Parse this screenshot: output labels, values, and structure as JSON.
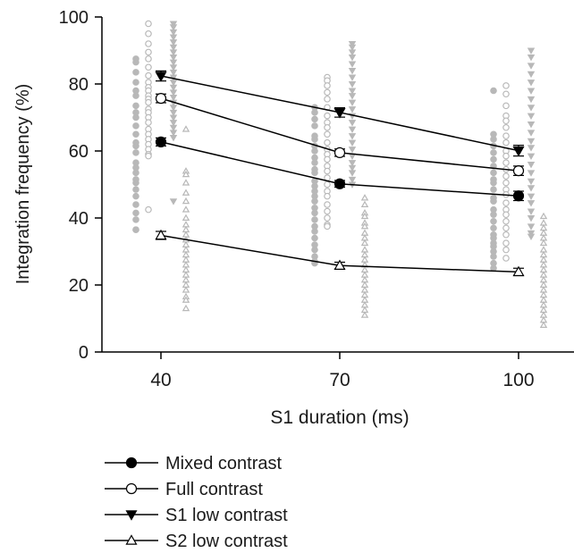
{
  "chart_data": {
    "type": "scatter",
    "xlabel": "S1 duration (ms)",
    "ylabel": "Integration frequency (%)",
    "x_categories": [
      "40",
      "70",
      "100"
    ],
    "x": [
      40,
      70,
      100
    ],
    "ylim": [
      0,
      100
    ],
    "yticks": [
      0,
      20,
      40,
      60,
      80,
      100
    ],
    "grid": false,
    "legend_position": "bottom-left",
    "series": [
      {
        "name": "Mixed contrast",
        "marker": "filled-circle",
        "color": "#000000",
        "mean": [
          62.7,
          50.2,
          46.6
        ],
        "sem": [
          1.2,
          1.0,
          1.4
        ],
        "individual": [
          [
            87.5,
            86.5,
            83.5,
            80.5,
            78.0,
            76.5,
            73.5,
            71.5,
            70.0,
            67.5,
            65.0,
            62.5,
            61.5,
            59.5,
            56.5,
            55.0,
            53.5,
            51.5,
            50.5,
            48.5,
            46.5,
            44.0,
            41.5,
            39.5,
            36.5,
            36.5
          ],
          [
            73.0,
            71.5,
            69.5,
            67.5,
            64.5,
            63.5,
            61.5,
            60.0,
            58.0,
            56.5,
            54.5,
            53.5,
            51.0,
            49.5,
            48.0,
            46.5,
            45.0,
            43.0,
            41.5,
            39.5,
            37.5,
            36.0,
            34.0,
            32.0,
            30.5,
            28.5,
            27.0,
            26.5
          ],
          [
            78.0,
            65.0,
            63.5,
            61.5,
            59.5,
            57.5,
            55.5,
            53.5,
            51.5,
            50.5,
            48.5,
            46.0,
            45.0,
            42.5,
            41.0,
            39.0,
            37.0,
            35.0,
            34.0,
            32.5,
            31.5,
            30.0,
            28.5,
            26.5,
            25.0
          ]
        ]
      },
      {
        "name": "Full contrast",
        "marker": "open-circle",
        "color": "#000000",
        "mean": [
          75.7,
          59.5,
          54.1
        ],
        "sem": [
          1.3,
          1.1,
          1.4
        ],
        "individual": [
          [
            98.0,
            95.0,
            92.0,
            89.5,
            87.5,
            85.0,
            82.5,
            80.5,
            79.0,
            78.0,
            76.5,
            75.5,
            74.5,
            72.5,
            71.5,
            70.0,
            68.5,
            66.5,
            65.0,
            63.5,
            62.0,
            60.5,
            59.0,
            58.5,
            42.5
          ],
          [
            82.0,
            81.0,
            79.5,
            77.5,
            75.5,
            73.0,
            70.5,
            68.5,
            67.0,
            65.0,
            62.5,
            60.5,
            59.0,
            57.5,
            55.5,
            54.0,
            52.0,
            50.0,
            48.0,
            46.5,
            44.0,
            42.0,
            40.0,
            38.0,
            37.5
          ],
          [
            79.5,
            77.0,
            73.5,
            70.5,
            69.0,
            67.0,
            64.5,
            62.5,
            60.0,
            58.5,
            56.5,
            54.5,
            52.5,
            50.5,
            48.5,
            47.0,
            44.5,
            42.5,
            41.0,
            39.0,
            37.0,
            35.0,
            32.5,
            30.5,
            28.0
          ]
        ]
      },
      {
        "name": "S1 low contrast",
        "marker": "filled-triangle-down",
        "color": "#000000",
        "mean": [
          82.4,
          71.5,
          60.1
        ],
        "sem": [
          1.5,
          1.4,
          1.6
        ],
        "individual": [
          [
            98.0,
            97.0,
            95.5,
            94.0,
            92.5,
            91.0,
            89.5,
            88.0,
            86.5,
            85.0,
            83.5,
            82.0,
            80.5,
            79.0,
            77.5,
            76.0,
            74.5,
            73.0,
            71.5,
            70.0,
            68.5,
            67.0,
            65.5,
            64.0,
            45.0
          ],
          [
            92.0,
            91.0,
            89.5,
            88.0,
            86.0,
            84.0,
            82.0,
            80.0,
            78.0,
            76.5,
            74.5,
            72.5,
            70.5,
            68.5,
            66.5,
            64.5,
            62.5,
            60.5,
            58.5,
            56.5,
            55.0,
            53.5,
            51.5,
            50.0
          ],
          [
            90.0,
            88.0,
            85.5,
            83.0,
            80.5,
            78.0,
            75.5,
            73.0,
            70.5,
            68.0,
            65.5,
            63.0,
            61.0,
            58.5,
            56.0,
            53.5,
            51.0,
            49.0,
            46.5,
            44.5,
            42.0,
            40.0,
            37.5,
            35.5,
            34.5
          ]
        ]
      },
      {
        "name": "S2 low contrast",
        "marker": "open-triangle-up",
        "color": "#000000",
        "mean": [
          34.8,
          25.8,
          23.9
        ],
        "sem": [
          1.2,
          1.0,
          1.1
        ],
        "individual": [
          [
            66.5,
            54.0,
            53.0,
            50.5,
            47.5,
            45.0,
            42.5,
            40.0,
            38.0,
            36.5,
            35.0,
            33.5,
            32.0,
            30.5,
            29.0,
            27.5,
            26.0,
            24.5,
            23.0,
            21.5,
            20.0,
            18.5,
            16.5,
            15.5,
            13.0
          ],
          [
            46.0,
            44.0,
            41.5,
            40.5,
            38.5,
            37.5,
            35.5,
            34.0,
            32.5,
            30.5,
            29.0,
            27.5,
            26.0,
            24.5,
            23.0,
            21.5,
            20.0,
            18.5,
            17.0,
            15.5,
            14.0,
            12.5,
            11.0
          ],
          [
            40.5,
            38.5,
            37.0,
            35.5,
            34.0,
            32.5,
            30.5,
            29.0,
            27.5,
            26.0,
            24.5,
            23.0,
            21.5,
            20.0,
            18.5,
            17.0,
            15.5,
            14.0,
            12.5,
            11.0,
            9.5,
            8.0
          ]
        ]
      }
    ]
  }
}
